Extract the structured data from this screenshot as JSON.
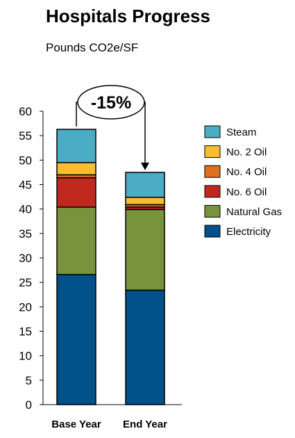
{
  "chart_data": {
    "type": "stacked-bar",
    "title": "Hospitals Progress",
    "subtitle": "Pounds CO2e/SF",
    "categories": [
      "Base Year",
      "End Year"
    ],
    "ylim": [
      0,
      60
    ],
    "yticks": [
      0,
      5,
      10,
      15,
      20,
      25,
      30,
      35,
      40,
      45,
      50,
      55,
      60
    ],
    "series": [
      {
        "name": "Electricity",
        "color": "#00508a",
        "values": [
          26.6,
          23.4
        ]
      },
      {
        "name": "Natural Gas",
        "color": "#77933c",
        "values": [
          13.8,
          16.5
        ]
      },
      {
        "name": "No. 6 Oil",
        "color": "#c0281e",
        "values": [
          6.0,
          0.5
        ]
      },
      {
        "name": "No. 4 Oil",
        "color": "#e0711c",
        "values": [
          0.6,
          0.5
        ]
      },
      {
        "name": "No. 2 Oil",
        "color": "#f9bd32",
        "values": [
          2.5,
          1.5
        ]
      },
      {
        "name": "Steam",
        "color": "#4bacc6",
        "values": [
          6.8,
          5.1
        ]
      }
    ],
    "legend_order": [
      "Steam",
      "No. 2 Oil",
      "No. 4 Oil",
      "No. 6 Oil",
      "Natural Gas",
      "Electricity"
    ],
    "legend_position": "right",
    "grid": false,
    "annotation": "-15%"
  }
}
